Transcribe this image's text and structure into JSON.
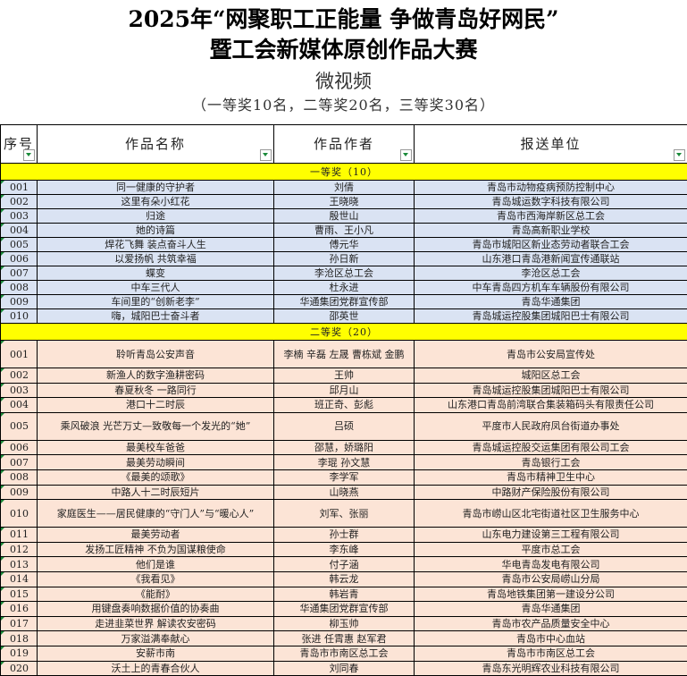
{
  "title": {
    "line1": "2025年“网聚职工正能量 争做青岛好网民”",
    "line2": "暨工会新媒体原创作品大赛",
    "category": "微视频",
    "quota": "（一等奖10名，二等奖20名，三等奖30名）"
  },
  "headers": [
    "序号",
    "作品名称",
    "作品作者",
    "报送单位"
  ],
  "colors": {
    "band": "#ffff00",
    "first_prize_row": "#dae3f3",
    "second_prize_row": "#fce4d6"
  },
  "sections": [
    {
      "label": "一等奖（10）",
      "rows": [
        [
          "001",
          "同一健康的守护者",
          "刘倩",
          "青岛市动物疫病预防控制中心"
        ],
        [
          "002",
          "这里有朵小红花",
          "王晓晓",
          "青岛城运数字科技有限公司"
        ],
        [
          "003",
          "归途",
          "殷世山",
          "青岛市西海岸新区总工会"
        ],
        [
          "004",
          "她的诗篇",
          "曹雨、王小凡",
          "青岛高新职业学校"
        ],
        [
          "005",
          "焊花飞舞 装点奋斗人生",
          "傅元华",
          "青岛市城阳区新业态劳动者联合工会"
        ],
        [
          "006",
          "以爱扬帆 共筑幸福",
          "孙日新",
          "山东港口青岛港新闻宣传通联站"
        ],
        [
          "007",
          "蝶变",
          "李沧区总工会",
          "李沧区总工会"
        ],
        [
          "008",
          "中车三代人",
          "杜永进",
          "中车青岛四方机车车辆股份有限公司"
        ],
        [
          "009",
          "车间里的“创新老李”",
          "华通集团党群宣传部",
          "青岛华通集团"
        ],
        [
          "010",
          "嗨，城阳巴士奋斗者",
          "邵英世",
          "青岛城运控股集团城阳巴士有限公司"
        ]
      ]
    },
    {
      "label": "二等奖（20）",
      "rows": [
        [
          "001",
          "聆听青岛公安声音",
          "李楠 辛磊 左晟 曹栋斌 金鹏",
          "青岛市公安局宣传处"
        ],
        [
          "002",
          "新渔人的数字渔耕密码",
          "王帅",
          "城阳区总工会"
        ],
        [
          "003",
          "春夏秋冬 一路同行",
          "邱月山",
          "青岛城运控股集团城阳巴士有限公司"
        ],
        [
          "004",
          "港口十二时辰",
          "班正奇、彭彪",
          "山东港口青岛前湾联合集装箱码头有限责任公司"
        ],
        [
          "005",
          "乘风破浪 光芒万丈—致敬每一个发光的“她”",
          "吕硕",
          "平度市人民政府凤台街道办事处"
        ],
        [
          "006",
          "最美校车爸爸",
          "邵慧，娇璐阳",
          "青岛城运控股交运集团有限公司工会"
        ],
        [
          "007",
          "最美劳动瞬间",
          "李琨 孙文慧",
          "青岛银行工会"
        ],
        [
          "008",
          "《最美的颂歌》",
          "李学军",
          "青岛市精神卫生中心"
        ],
        [
          "009",
          "中路人十二时辰短片",
          "山晓燕",
          "中路财产保险股份有限公司"
        ],
        [
          "010",
          "家庭医生——居民健康的“守门人”与“暖心人”",
          "刘军、张丽",
          "青岛市崂山区北宅街道社区卫生服务中心"
        ],
        [
          "011",
          "最美劳动者",
          "孙士群",
          "山东电力建设第三工程有限公司"
        ],
        [
          "012",
          "发扬工匠精神 不负为国谋粮使命",
          "李东峰",
          "平度市总工会"
        ],
        [
          "013",
          "他们是谁",
          "付子涵",
          "华电青岛发电有限公司"
        ],
        [
          "014",
          "《我看见》",
          "韩云龙",
          "青岛市公安局崂山分局"
        ],
        [
          "015",
          "《能耐》",
          "韩岩青",
          "青岛地铁集团第一建设分公司"
        ],
        [
          "016",
          "用键盘奏响数据价值的协奏曲",
          "华通集团党群宣传部",
          "青岛华通集团"
        ],
        [
          "017",
          "走进韭菜世界 解读农安密码",
          "柳玉帅",
          "青岛市农产品质量安全中心"
        ],
        [
          "018",
          "万家溢满奉献心",
          "张进 任霄惠 赵军君",
          "青岛市中心血站"
        ],
        [
          "019",
          "安薪市南",
          "青岛市市南区总工会",
          "青岛市市南区总工会"
        ],
        [
          "020",
          "沃土上的青春合伙人",
          "刘同春",
          "青岛东光明辉农业科技有限公司"
        ]
      ]
    }
  ]
}
